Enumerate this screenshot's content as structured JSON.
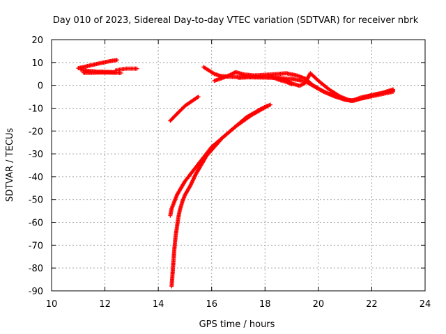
{
  "chart_data": {
    "type": "scatter",
    "title": "Day 010 of 2023, Sidereal Day-to-day VTEC variation (SDTVAR) for receiver nbrk",
    "xlabel": "GPS time / hours",
    "ylabel": "SDTVAR / TECUs",
    "xlim": [
      10,
      24
    ],
    "ylim": [
      -90,
      20
    ],
    "xticks": [
      10,
      12,
      14,
      16,
      18,
      20,
      22,
      24
    ],
    "yticks": [
      -90,
      -80,
      -70,
      -60,
      -50,
      -40,
      -30,
      -20,
      -10,
      0,
      10,
      20
    ],
    "grid": true,
    "marker": "plus",
    "color": "#ff0000",
    "series": [
      {
        "x": [
          11.0,
          11.3,
          11.6,
          11.9,
          12.2,
          12.45
        ],
        "y": [
          7.5,
          8.3,
          9.1,
          9.9,
          10.6,
          11.1
        ]
      },
      {
        "x": [
          11.1,
          11.4,
          11.7,
          12.0,
          12.3,
          12.5
        ],
        "y": [
          6.8,
          6.3,
          6.0,
          5.9,
          5.8,
          5.6
        ]
      },
      {
        "x": [
          11.2,
          11.5,
          11.8,
          12.1,
          12.4,
          12.6
        ],
        "y": [
          5.5,
          5.5,
          5.6,
          5.6,
          5.5,
          5.4
        ]
      },
      {
        "x": [
          12.4,
          12.6,
          12.8,
          13.0,
          13.2
        ],
        "y": [
          6.5,
          7.0,
          7.3,
          7.3,
          7.3
        ]
      },
      {
        "x": [
          14.45,
          14.7,
          15.0,
          15.25,
          15.5
        ],
        "y": [
          -15.5,
          -12.5,
          -9.0,
          -7.0,
          -5.0
        ]
      },
      {
        "x": [
          14.5,
          14.55,
          14.6,
          14.65,
          14.7,
          14.75,
          14.8,
          14.9,
          15.0,
          15.2,
          15.4,
          15.6,
          15.8,
          16.1,
          16.4,
          16.7,
          17.0,
          17.3,
          17.6,
          17.9,
          18.2
        ],
        "y": [
          -88,
          -80,
          -72,
          -66,
          -62,
          -58,
          -55,
          -51,
          -48,
          -44,
          -39,
          -35,
          -31,
          -27,
          -23,
          -20,
          -17,
          -14,
          -12,
          -10,
          -8.5
        ]
      },
      {
        "x": [
          14.45,
          14.5,
          14.6,
          14.7,
          14.85,
          15.0,
          15.2,
          15.4,
          15.6,
          15.8,
          16.0,
          16.3,
          16.6,
          16.9,
          17.2,
          17.5,
          17.8,
          18.1
        ],
        "y": [
          -57,
          -54,
          -51,
          -48,
          -45,
          -42,
          -39,
          -36,
          -33,
          -30,
          -27,
          -24,
          -21,
          -18,
          -15.5,
          -13,
          -11,
          -9
        ]
      },
      {
        "x": [
          15.7,
          15.9,
          16.1,
          16.3,
          16.6,
          17.0,
          17.5,
          18.0,
          18.5,
          19.0,
          19.5,
          20.0,
          20.4,
          20.8,
          21.0,
          21.3,
          21.6,
          22.0,
          22.4,
          22.8
        ],
        "y": [
          8.0,
          6.5,
          5.0,
          4.2,
          3.8,
          3.6,
          3.5,
          3.4,
          3.2,
          2.8,
          1.8,
          -1.5,
          -3.8,
          -5.3,
          -6.3,
          -6.6,
          -5.3,
          -4.3,
          -3.3,
          -2.3
        ]
      },
      {
        "x": [
          16.1,
          16.4,
          16.7,
          16.9,
          17.2,
          17.6,
          18.0,
          18.4,
          18.8,
          19.2,
          19.5,
          19.8,
          20.2,
          20.6,
          21.0,
          21.3,
          21.6,
          22.0,
          22.4,
          22.8
        ],
        "y": [
          2.0,
          3.2,
          4.6,
          5.8,
          4.8,
          4.3,
          4.6,
          4.9,
          5.3,
          4.3,
          3.0,
          0.0,
          -2.8,
          -4.8,
          -6.3,
          -6.8,
          -5.8,
          -4.8,
          -3.8,
          -2.8
        ]
      },
      {
        "x": [
          17.0,
          17.5,
          18.0,
          18.5,
          18.8,
          19.0,
          19.3,
          19.5,
          19.7,
          20.0,
          20.4,
          20.8,
          21.2,
          21.6,
          22.0,
          22.4,
          22.8
        ],
        "y": [
          3.3,
          3.6,
          3.7,
          3.3,
          2.3,
          0.8,
          -0.2,
          1.0,
          5.3,
          2.0,
          -1.8,
          -4.8,
          -6.8,
          -5.8,
          -4.3,
          -3.3,
          -1.8
        ]
      },
      {
        "x": [
          18.2,
          18.5,
          18.8,
          19.0
        ],
        "y": [
          4.0,
          2.5,
          1.5,
          0.5
        ]
      }
    ]
  }
}
